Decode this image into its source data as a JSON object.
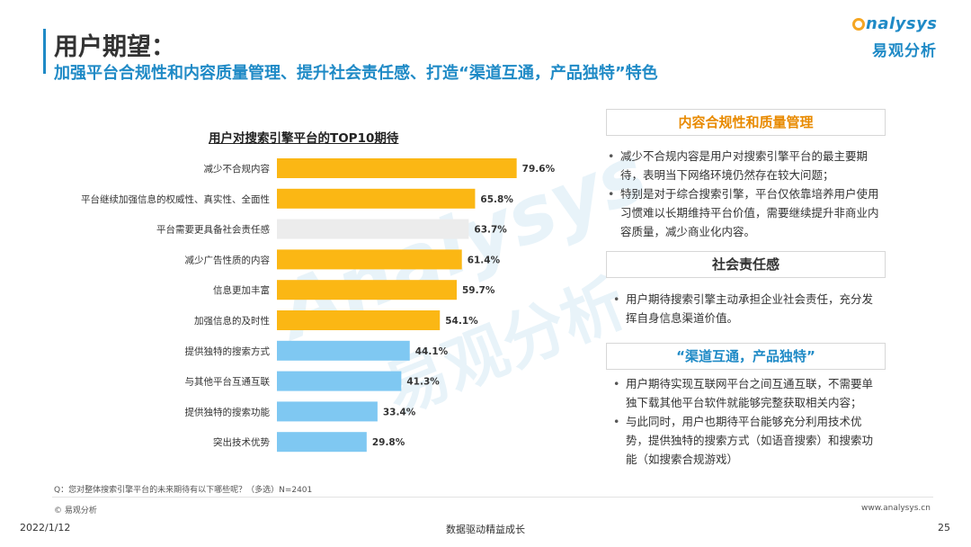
{
  "header": {
    "title": "用户期望：",
    "subtitle": "加强平台合规性和内容质量管理、提升社会责任感、打造“渠道互通，产品独特”特色"
  },
  "logo": {
    "en": "nalysys",
    "cn": "易观分析"
  },
  "watermark": {
    "en": "Analysys",
    "cn": "易观分析"
  },
  "colors": {
    "accent_blue": "#1f8ac6",
    "bar_orange": "#fbb714",
    "bar_grey": "#ececec",
    "bar_blue": "#7fc8f2",
    "heading_orange": "#e88a00"
  },
  "chart_data": {
    "type": "bar",
    "orientation": "horizontal",
    "title": "用户对搜索引擎平台的TOP10期待",
    "categories": [
      "减少不合规内容",
      "平台继续加强信息的权威性、真实性、全面性",
      "平台需要更具备社会责任感",
      "减少广告性质的内容",
      "信息更加丰富",
      "加强信息的及时性",
      "提供独特的搜索方式",
      "与其他平台互通互联",
      "提供独特的搜索功能",
      "突出技术优势"
    ],
    "values": [
      79.6,
      65.8,
      63.7,
      61.4,
      59.7,
      54.1,
      44.1,
      41.3,
      33.4,
      29.8
    ],
    "value_labels": [
      "79.6%",
      "65.8%",
      "63.7%",
      "61.4%",
      "59.7%",
      "54.1%",
      "44.1%",
      "41.3%",
      "33.4%",
      "29.8%"
    ],
    "bar_colors": [
      "#fbb714",
      "#fbb714",
      "#ececec",
      "#fbb714",
      "#fbb714",
      "#fbb714",
      "#7fc8f2",
      "#7fc8f2",
      "#7fc8f2",
      "#7fc8f2"
    ],
    "xlim": [
      0,
      100
    ]
  },
  "sections": [
    {
      "heading": "内容合规性和质量管理",
      "bullets": [
        "减少不合规内容是用户对搜索引擎平台的最主要期待，表明当下网络环境仍然存在较大问题；",
        "特别是对于综合搜索引擎，平台仅依靠培养用户使用习惯难以长期维持平台价值，需要继续提升非商业内容质量，减少商业化内容。"
      ]
    },
    {
      "heading": "社会责任感",
      "bullets": [
        "用户期待搜索引擎主动承担企业社会责任，充分发挥自身信息渠道价值。"
      ]
    },
    {
      "heading": "“渠道互通，产品独特”",
      "bullets": [
        "用户期待实现互联网平台之间互通互联，不需要单独下载其他平台软件就能够完整获取相关内容；",
        "与此同时，用户也期待平台能够充分利用技术优势，提供独特的搜索方式（如语音搜索）和搜索功能（如搜索合规游戏）"
      ]
    }
  ],
  "footer": {
    "question": "Q：您对整体搜索引擎平台的未来期待有以下哪些呢？（多选）N=2401",
    "copyright": "© 易观分析",
    "website": "www.analysys.cn",
    "date": "2022/1/12",
    "slogan": "数据驱动精益成长",
    "page": "25"
  }
}
